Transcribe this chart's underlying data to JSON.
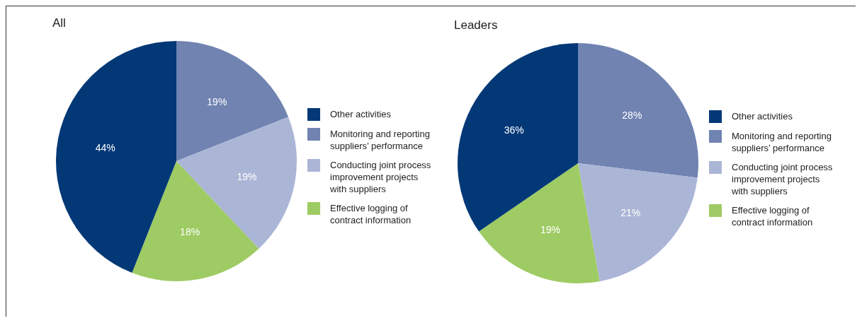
{
  "chart_data": [
    {
      "type": "pie",
      "title": "All",
      "categories": [
        "Other activities",
        "Monitoring and reporting suppliers’ performance",
        "Conducting joint process improvement projects with suppliers",
        "Effective logging of contract information"
      ],
      "values": [
        44,
        19,
        19,
        18
      ],
      "value_labels": [
        "44%",
        "19%",
        "19%",
        "18%"
      ],
      "colors": [
        "#033877",
        "#7083b1",
        "#abb5d6",
        "#9ecb63"
      ],
      "legend": "right"
    },
    {
      "type": "pie",
      "title": "Leaders",
      "categories": [
        "Other activities",
        "Monitoring and reporting suppliers’ performance",
        "Conducting joint process improvement projects with suppliers",
        "Effective logging of contract information"
      ],
      "values": [
        36,
        28,
        21,
        19
      ],
      "value_labels": [
        "36%",
        "28%",
        "21%",
        "19%"
      ],
      "colors": [
        "#033877",
        "#7083b1",
        "#abb5d6",
        "#9ecb63"
      ],
      "legend": "right"
    }
  ]
}
